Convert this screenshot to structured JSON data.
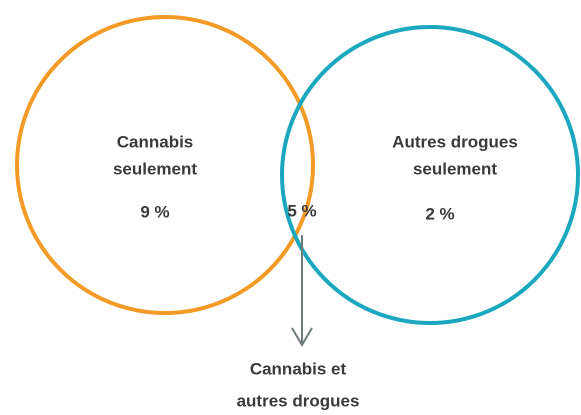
{
  "chart_data": {
    "type": "venn",
    "categories": [
      [
        "Cannabis",
        "seulement"
      ],
      [
        "Autres drogues",
        "seulement"
      ],
      [
        "Cannabis et",
        "autres drogues"
      ]
    ],
    "values": [
      9,
      2,
      5
    ],
    "value_labels": [
      "9 %",
      "2 %",
      "5 %"
    ],
    "colors": [
      "#f39b26",
      "#1ba7bd"
    ],
    "arrow_color": "#6e7b7b"
  }
}
